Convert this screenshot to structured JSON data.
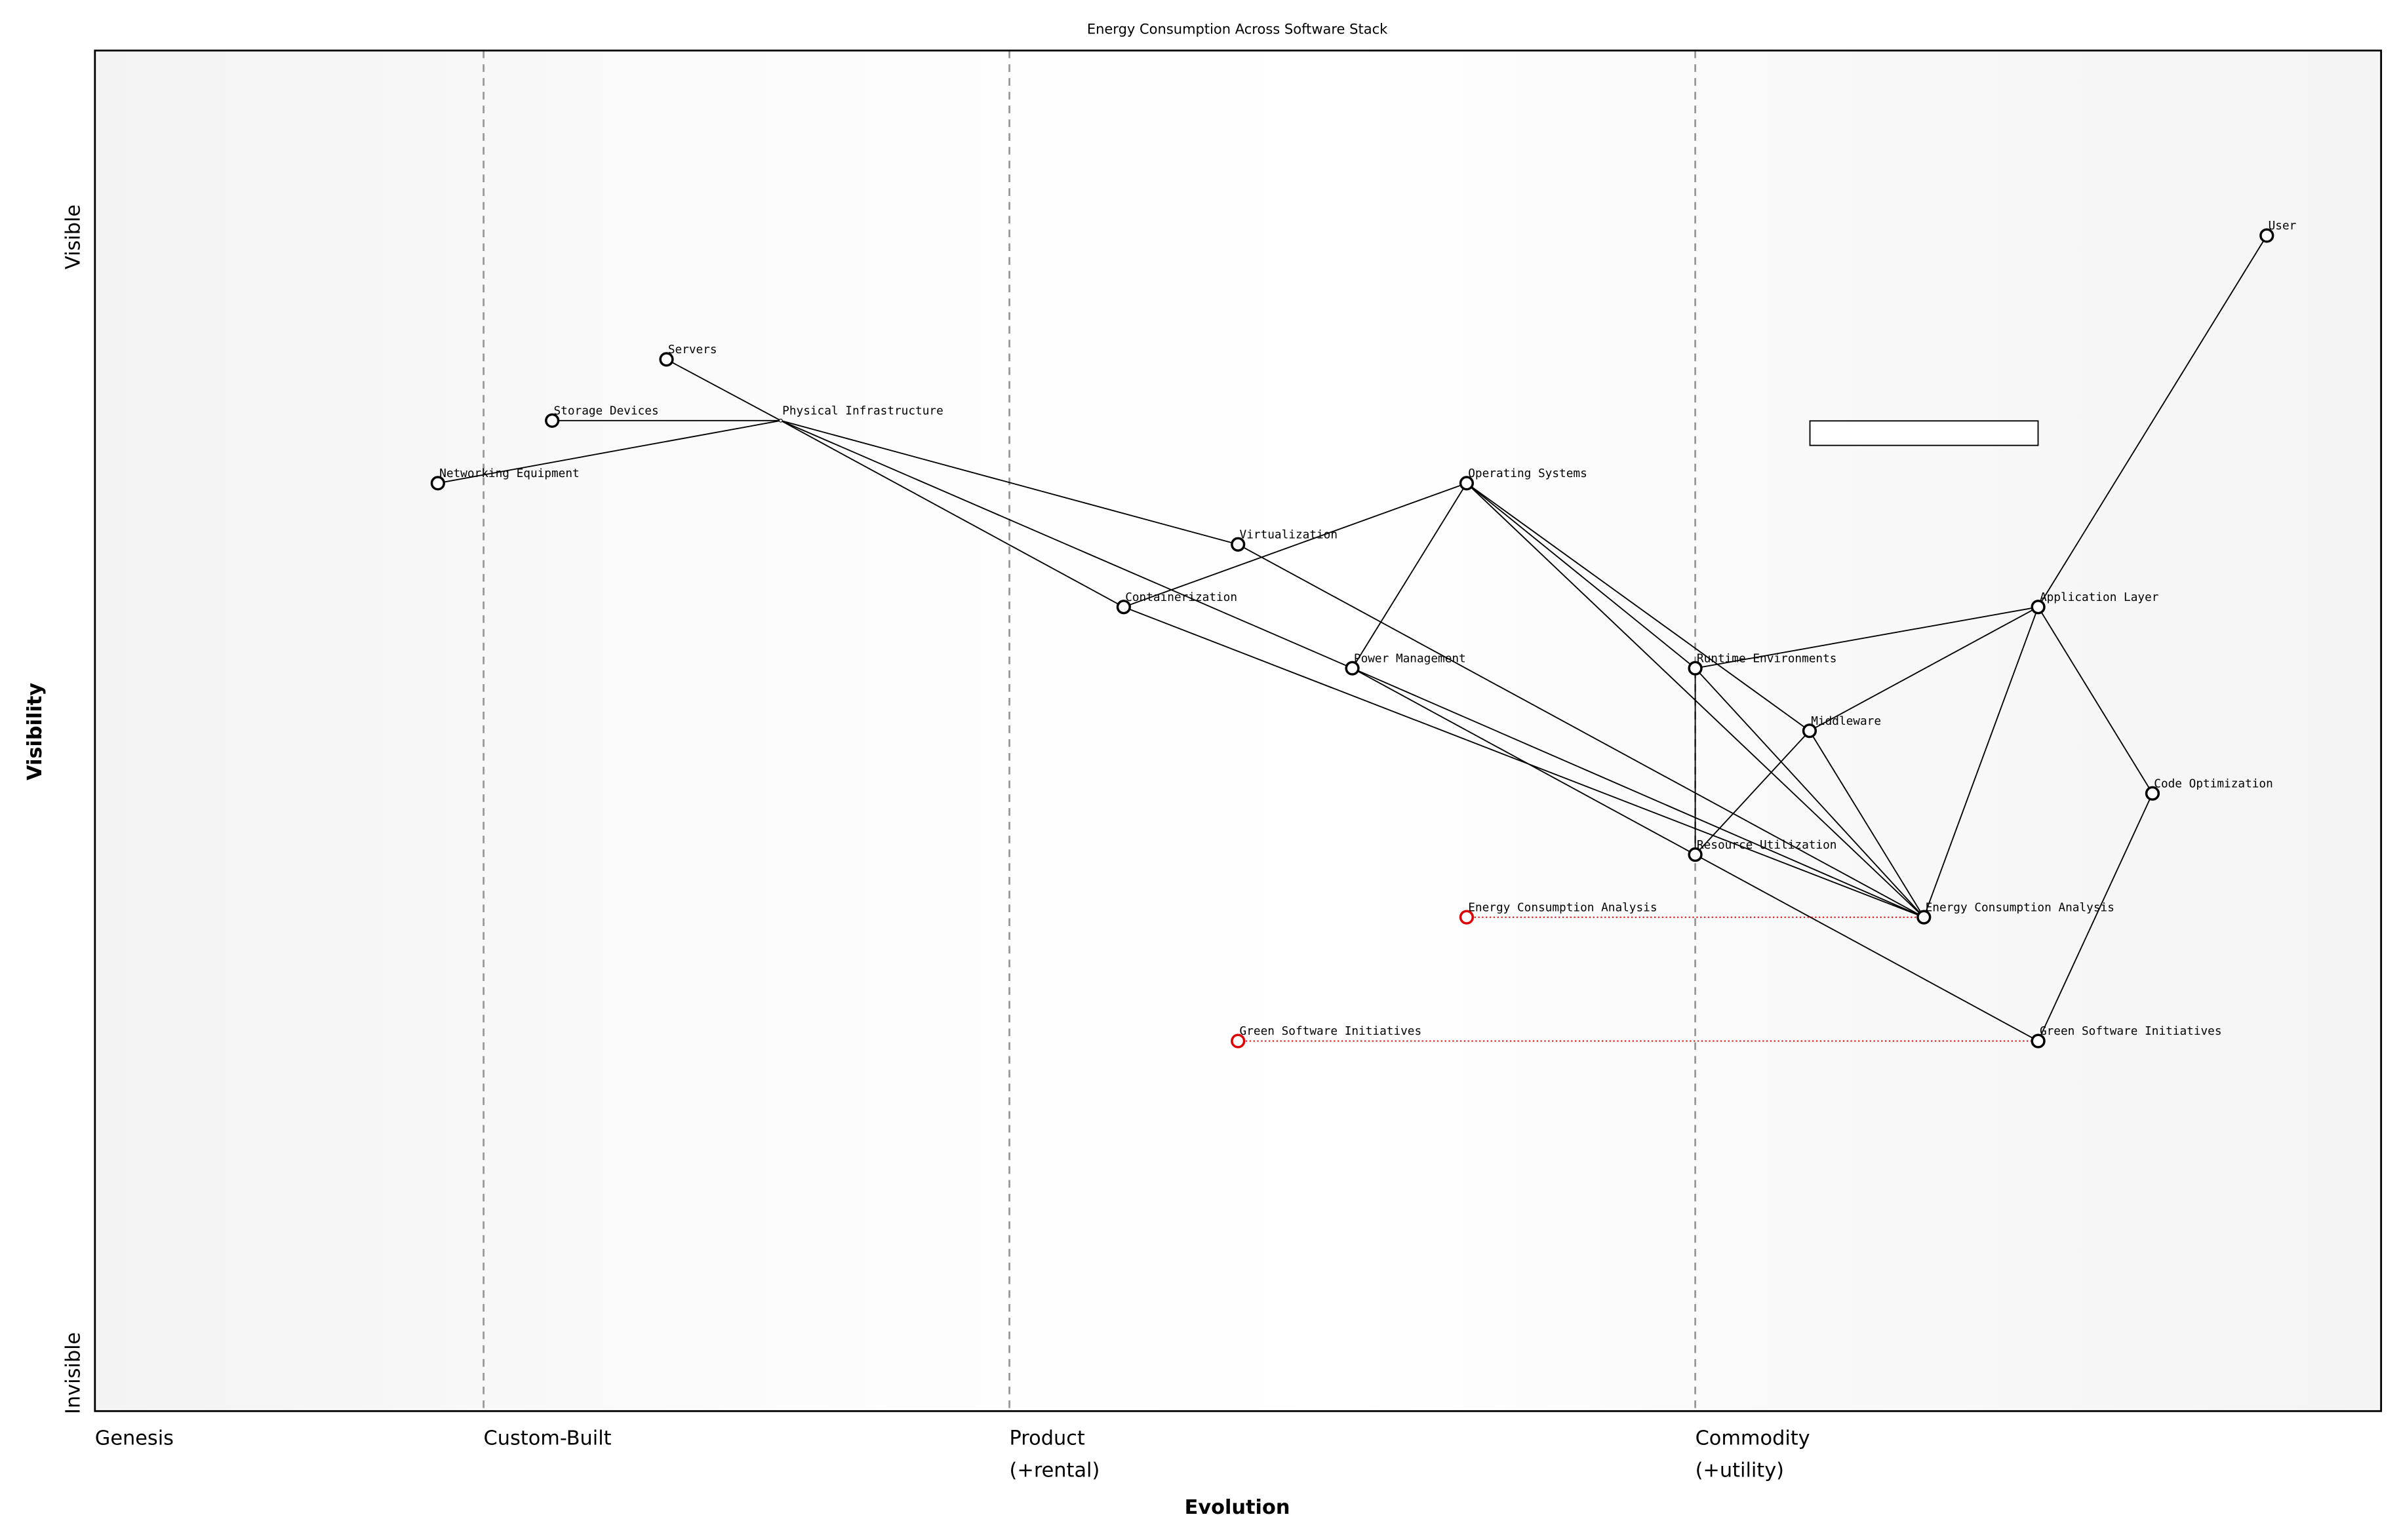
{
  "title": "Energy Consumption Across Software Stack",
  "axes": {
    "x_title": "Evolution",
    "y_title": "Visibility",
    "y_top": "Visible",
    "y_bottom": "Invisible",
    "stages": [
      {
        "value": 0,
        "lines": [
          "Genesis"
        ]
      },
      {
        "value": 0.17,
        "lines": [
          "Custom-Built"
        ]
      },
      {
        "value": 0.4,
        "lines": [
          "Product",
          "(+rental)"
        ]
      },
      {
        "value": 0.7,
        "lines": [
          "Commodity",
          "(+utility)"
        ]
      }
    ]
  },
  "nodes": [
    {
      "label": "User",
      "evolution": 0.95,
      "visibility": 0.864
    },
    {
      "label": "Servers",
      "evolution": 0.25,
      "visibility": 0.773
    },
    {
      "label": "Storage Devices",
      "evolution": 0.2,
      "visibility": 0.728
    },
    {
      "label": "Networking Equipment",
      "evolution": 0.15,
      "visibility": 0.682
    },
    {
      "label": "Physical Infrastructure",
      "evolution": 0.3,
      "visibility": 0.728
    },
    {
      "label": "Operating Systems",
      "evolution": 0.6,
      "visibility": 0.682
    },
    {
      "label": "Virtualization",
      "evolution": 0.5,
      "visibility": 0.637
    },
    {
      "label": "Containerization",
      "evolution": 0.45,
      "visibility": 0.591
    },
    {
      "label": "Power Management",
      "evolution": 0.55,
      "visibility": 0.546
    },
    {
      "label": "Runtime Environments",
      "evolution": 0.7,
      "visibility": 0.546
    },
    {
      "label": "Middleware",
      "evolution": 0.75,
      "visibility": 0.5
    },
    {
      "label": "Application Layer",
      "evolution": 0.85,
      "visibility": 0.591
    },
    {
      "label": "Code Optimization",
      "evolution": 0.9,
      "visibility": 0.454
    },
    {
      "label": "Resource Utilization",
      "evolution": 0.7,
      "visibility": 0.409
    },
    {
      "label": "Energy Consumption Analysis",
      "evolution": 0.8,
      "visibility": 0.363
    },
    {
      "label": "Green Software Initiatives",
      "evolution": 0.85,
      "visibility": 0.272
    }
  ],
  "links": [
    [
      0,
      11
    ],
    [
      11,
      9
    ],
    [
      11,
      10
    ],
    [
      11,
      12
    ],
    [
      11,
      14
    ],
    [
      9,
      5
    ],
    [
      9,
      13
    ],
    [
      9,
      14
    ],
    [
      10,
      5
    ],
    [
      10,
      13
    ],
    [
      10,
      14
    ],
    [
      5,
      7
    ],
    [
      5,
      8
    ],
    [
      5,
      14
    ],
    [
      4,
      1
    ],
    [
      4,
      2
    ],
    [
      4,
      3
    ],
    [
      4,
      6
    ],
    [
      4,
      7
    ],
    [
      4,
      8
    ],
    [
      6,
      14
    ],
    [
      7,
      14
    ],
    [
      8,
      14
    ],
    [
      8,
      13
    ],
    [
      13,
      15
    ],
    [
      12,
      15
    ]
  ],
  "evolve": [
    {
      "label": "Energy Consumption Analysis",
      "evolution": 0.6,
      "visibility": 0.363,
      "to": 14
    },
    {
      "label": "Green Software Initiatives",
      "evolution": 0.5,
      "visibility": 0.272,
      "to": 15
    }
  ]
}
